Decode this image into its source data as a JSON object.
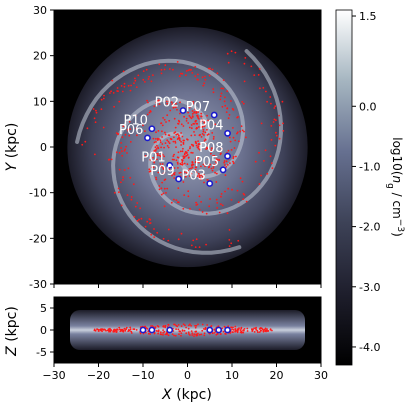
{
  "chart_data": [
    {
      "type": "heatmap",
      "panel": "face-on",
      "xlabel_math": "X",
      "xunit": "(kpc)",
      "ylabel_math": "Y",
      "yunit": "(kpc)",
      "xlim": [
        -30,
        30
      ],
      "ylim": [
        -30,
        30
      ],
      "xticks": [
        -30,
        -20,
        -10,
        0,
        10,
        20,
        30
      ],
      "yticks": [
        -30,
        -20,
        -10,
        0,
        10,
        20,
        30
      ],
      "xticks_shown": false,
      "colormap": "bone",
      "disk_radius": 27,
      "points": [
        {
          "label": "P01",
          "x": -4,
          "y": -4
        },
        {
          "label": "P02",
          "x": -1,
          "y": 8
        },
        {
          "label": "P03",
          "x": 5,
          "y": -8
        },
        {
          "label": "P04",
          "x": 9,
          "y": 3
        },
        {
          "label": "P05",
          "x": 8,
          "y": -5
        },
        {
          "label": "P06",
          "x": -9,
          "y": 2
        },
        {
          "label": "P07",
          "x": 6,
          "y": 7
        },
        {
          "label": "P08",
          "x": 9,
          "y": -2
        },
        {
          "label": "P09",
          "x": -2,
          "y": -7
        },
        {
          "label": "P10",
          "x": -8,
          "y": 4
        }
      ]
    },
    {
      "type": "heatmap",
      "panel": "edge-on",
      "xlabel_math": "X",
      "xunit": "(kpc)",
      "ylabel_math": "Z",
      "yunit": "(kpc)",
      "xlim": [
        -30,
        30
      ],
      "ylim": [
        -7.5,
        7.5
      ],
      "xticks": [
        -30,
        -20,
        -10,
        0,
        10,
        20,
        30
      ],
      "yticks": [
        -5,
        0,
        5
      ],
      "colormap": "bone",
      "points_x": [
        -10,
        -8,
        -4,
        5,
        7,
        9
      ]
    }
  ],
  "colorbar": {
    "label_prefix": "log10(",
    "label_var": "n",
    "label_sub": "g",
    "label_suffix": " / cm",
    "label_sup": "−3",
    "label_close": ")",
    "range": [
      -4.3,
      1.6
    ],
    "ticks": [
      1.5,
      0.0,
      -1.0,
      -2.0,
      -3.0,
      -4.0
    ],
    "tick_labels": [
      "1.5",
      "0.0",
      "-1.0",
      "-2.0",
      "-3.0",
      "-4.0"
    ]
  },
  "colors": {
    "background": "#000000",
    "gas_high": "#f1f7f7",
    "gas_mid": "#8088a0",
    "gas_low": "#2b2b3c",
    "star_particles": "#ff1a1a",
    "marker_fill": "#ffffff",
    "marker_edge": "#1a1acc",
    "label": "#ffffff"
  }
}
